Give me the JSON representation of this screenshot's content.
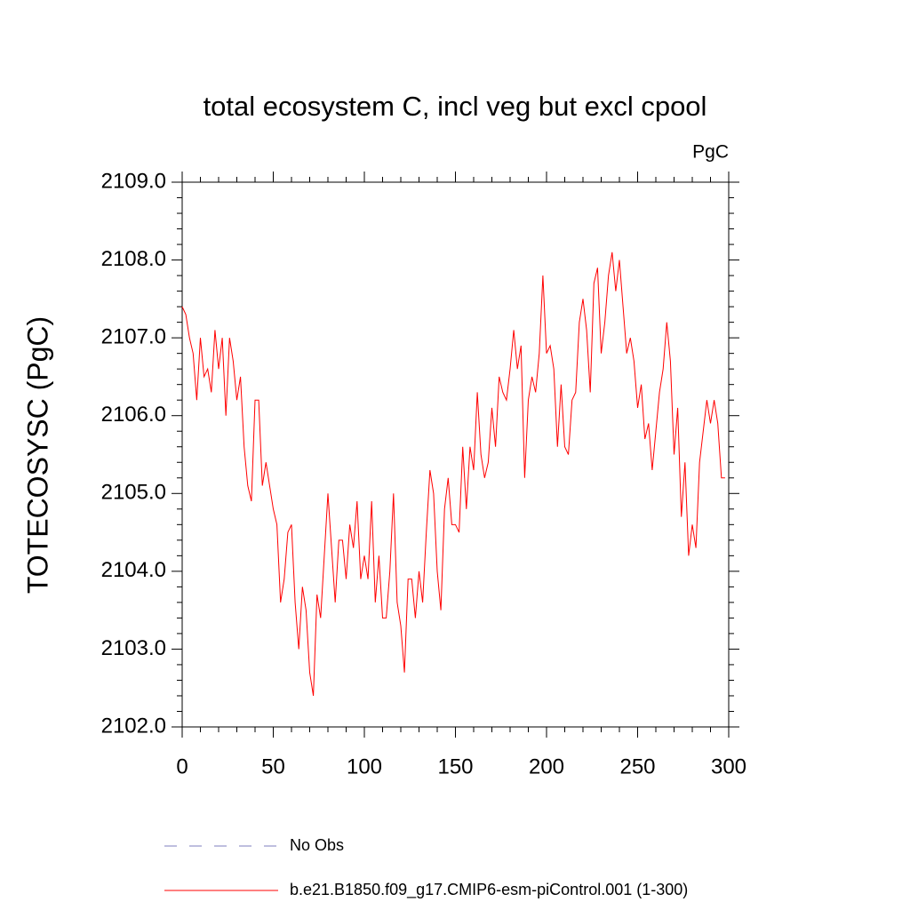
{
  "chart_data": {
    "type": "line",
    "title": "total ecosystem C, incl veg but excl cpool",
    "units": "PgC",
    "y_label": "TOTECOSYSC  (PgC)",
    "xlim": [
      0,
      300
    ],
    "xticks": [
      0,
      50,
      100,
      150,
      200,
      250,
      300
    ],
    "ylim": [
      2102,
      2109
    ],
    "yticks": [
      {
        "value": 2102,
        "label": "2102.0"
      },
      {
        "value": 2103,
        "label": "2103.0"
      },
      {
        "value": 2104,
        "label": "2104.0"
      },
      {
        "value": 2105,
        "label": "2105.0"
      },
      {
        "value": 2106,
        "label": "2106.0"
      },
      {
        "value": 2107,
        "label": "2107.0"
      },
      {
        "value": 2108,
        "label": "2108.0"
      },
      {
        "value": 2109,
        "label": "2109.0"
      }
    ],
    "x": [
      0,
      2,
      4,
      6,
      8,
      10,
      12,
      14,
      16,
      18,
      20,
      22,
      24,
      26,
      28,
      30,
      32,
      34,
      36,
      38,
      40,
      42,
      44,
      46,
      48,
      50,
      52,
      54,
      56,
      58,
      60,
      62,
      64,
      66,
      68,
      70,
      72,
      74,
      76,
      78,
      80,
      82,
      84,
      86,
      88,
      90,
      92,
      94,
      96,
      98,
      100,
      102,
      104,
      106,
      108,
      110,
      112,
      114,
      116,
      118,
      120,
      122,
      124,
      126,
      128,
      130,
      132,
      134,
      136,
      138,
      140,
      142,
      144,
      146,
      148,
      150,
      152,
      154,
      156,
      158,
      160,
      162,
      164,
      166,
      168,
      170,
      172,
      174,
      176,
      178,
      180,
      182,
      184,
      186,
      188,
      190,
      192,
      194,
      196,
      198,
      200,
      202,
      204,
      206,
      208,
      210,
      212,
      214,
      216,
      218,
      220,
      222,
      224,
      226,
      228,
      230,
      232,
      234,
      236,
      238,
      240,
      242,
      244,
      246,
      248,
      250,
      252,
      254,
      256,
      258,
      260,
      262,
      264,
      266,
      268,
      270,
      272,
      274,
      276,
      278,
      280,
      282,
      284,
      286,
      288,
      290,
      292,
      294,
      296,
      298
    ],
    "series": [
      {
        "name": "b.e21.B1850.f09_g17.CMIP6-esm-piControl.001 (1-300)",
        "color": "#ff0000",
        "values": [
          2107.4,
          2107.3,
          2107.0,
          2106.8,
          2106.2,
          2107.0,
          2106.5,
          2106.6,
          2106.3,
          2107.1,
          2106.6,
          2107.0,
          2106.0,
          2107.0,
          2106.7,
          2106.2,
          2106.5,
          2105.6,
          2105.1,
          2104.9,
          2106.2,
          2106.2,
          2105.1,
          2105.4,
          2105.1,
          2104.8,
          2104.6,
          2103.6,
          2103.9,
          2104.5,
          2104.6,
          2103.6,
          2103.0,
          2103.8,
          2103.5,
          2102.7,
          2102.4,
          2103.7,
          2103.4,
          2104.2,
          2105.0,
          2104.3,
          2103.6,
          2104.4,
          2104.4,
          2103.9,
          2104.6,
          2104.3,
          2104.9,
          2103.9,
          2104.2,
          2103.9,
          2104.9,
          2103.6,
          2104.2,
          2103.4,
          2103.4,
          2104.0,
          2105.0,
          2103.6,
          2103.3,
          2102.7,
          2103.9,
          2103.9,
          2103.4,
          2104.0,
          2103.6,
          2104.5,
          2105.3,
          2105.0,
          2104.0,
          2103.5,
          2104.8,
          2105.2,
          2104.6,
          2104.6,
          2104.5,
          2105.6,
          2104.8,
          2105.6,
          2105.3,
          2106.3,
          2105.5,
          2105.2,
          2105.4,
          2106.1,
          2105.6,
          2106.5,
          2106.3,
          2106.2,
          2106.6,
          2107.1,
          2106.6,
          2106.9,
          2105.2,
          2106.2,
          2106.5,
          2106.3,
          2106.8,
          2107.8,
          2106.8,
          2106.9,
          2106.6,
          2105.6,
          2106.4,
          2105.6,
          2105.5,
          2106.2,
          2106.3,
          2107.2,
          2107.5,
          2107.1,
          2106.3,
          2107.7,
          2107.9,
          2106.8,
          2107.2,
          2107.8,
          2108.1,
          2107.6,
          2108.0,
          2107.4,
          2106.8,
          2107.0,
          2106.7,
          2106.1,
          2106.4,
          2105.7,
          2105.9,
          2105.3,
          2105.8,
          2106.3,
          2106.6,
          2107.2,
          2106.7,
          2105.5,
          2106.1,
          2104.7,
          2105.4,
          2104.2,
          2104.6,
          2104.3,
          2105.4,
          2105.8,
          2106.2,
          2105.9,
          2106.2,
          2105.9,
          2105.2,
          2105.2
        ]
      }
    ],
    "legend": [
      {
        "name": "No Obs",
        "color": "#7f7fbf",
        "style": "dashed"
      }
    ]
  }
}
